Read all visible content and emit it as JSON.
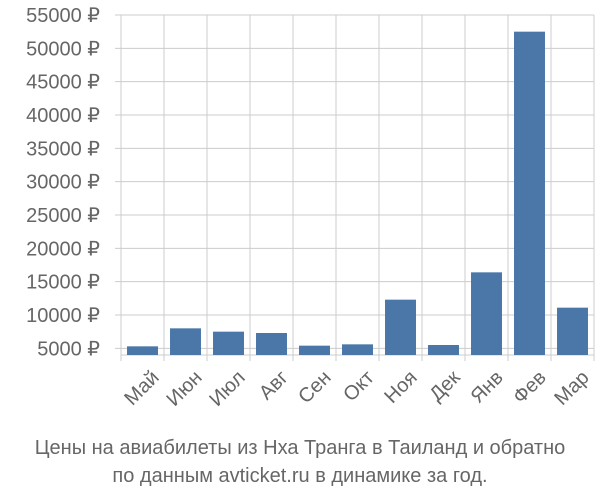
{
  "chart_data": {
    "type": "bar",
    "categories": [
      "Май",
      "Июн",
      "Июл",
      "Авг",
      "Сен",
      "Окт",
      "Ноя",
      "Дек",
      "Янв",
      "Фев",
      "Мар"
    ],
    "values": [
      5300,
      8000,
      7500,
      7300,
      5400,
      5600,
      12300,
      5500,
      16400,
      52500,
      11100
    ],
    "ylim": [
      4000,
      55000
    ],
    "yticks": [
      5000,
      10000,
      15000,
      20000,
      25000,
      30000,
      35000,
      40000,
      45000,
      50000,
      55000
    ],
    "ytick_labels": [
      "5000 ₽",
      "10000 ₽",
      "15000 ₽",
      "20000 ₽",
      "25000 ₽",
      "30000 ₽",
      "35000 ₽",
      "40000 ₽",
      "45000 ₽",
      "50000 ₽",
      "55000 ₽"
    ],
    "grid": true,
    "bar_color": "#4a76a8",
    "grid_color": "#cccccc"
  },
  "caption": {
    "line1": "Цены на авиабилеты из Нха Транга в Таиланд и обратно",
    "line2": "по данным avticket.ru в динамике за год."
  }
}
